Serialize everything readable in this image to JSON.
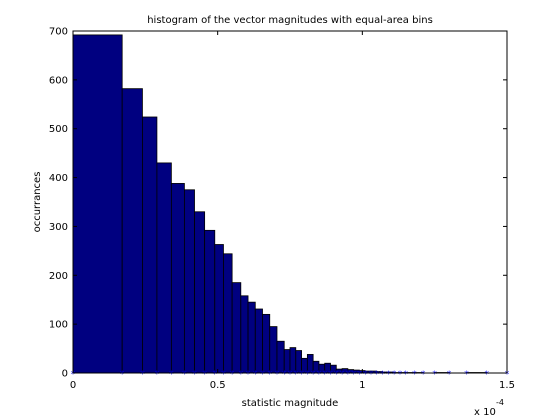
{
  "chart_data": {
    "type": "bar",
    "title": "histogram of the vector magnitudes with equal-area bins",
    "xlabel": "statistic magnitude",
    "ylabel": "occurrances",
    "x_multiplier": "x 10",
    "x_multiplier_exponent": "-4",
    "xlim": [
      0,
      1.5
    ],
    "ylim": [
      0,
      700
    ],
    "xticks": [
      "0",
      "0.5",
      "1",
      "1.5"
    ],
    "xtick_values": [
      0,
      0.5,
      1,
      1.5
    ],
    "yticks": [
      "0",
      "100",
      "200",
      "300",
      "400",
      "500",
      "600",
      "700"
    ],
    "ytick_values": [
      0,
      100,
      200,
      300,
      400,
      500,
      600,
      700
    ],
    "grid": false,
    "bar_color": "#000080",
    "marker_color": "#0000ff",
    "bin_edges": [
      0,
      0.17,
      0.24,
      0.29,
      0.34,
      0.385,
      0.42,
      0.455,
      0.49,
      0.52,
      0.55,
      0.58,
      0.605,
      0.63,
      0.655,
      0.68,
      0.705,
      0.73,
      0.75,
      0.77,
      0.79,
      0.81,
      0.83,
      0.85,
      0.87,
      0.89,
      0.91,
      0.93,
      0.95,
      0.97,
      0.99,
      1.01,
      1.03,
      1.05,
      1.07,
      1.09,
      1.11,
      1.13,
      1.15,
      1.18,
      1.21,
      1.25,
      1.3,
      1.36,
      1.43,
      1.5
    ],
    "values": [
      692,
      582,
      524,
      430,
      388,
      375,
      330,
      292,
      263,
      244,
      185,
      158,
      145,
      131,
      120,
      95,
      65,
      48,
      52,
      46,
      30,
      38,
      24,
      18,
      20,
      16,
      8,
      9,
      7,
      6,
      5,
      4,
      4,
      3,
      2,
      2,
      1,
      1,
      1,
      1,
      0,
      1,
      0,
      1,
      0
    ]
  }
}
